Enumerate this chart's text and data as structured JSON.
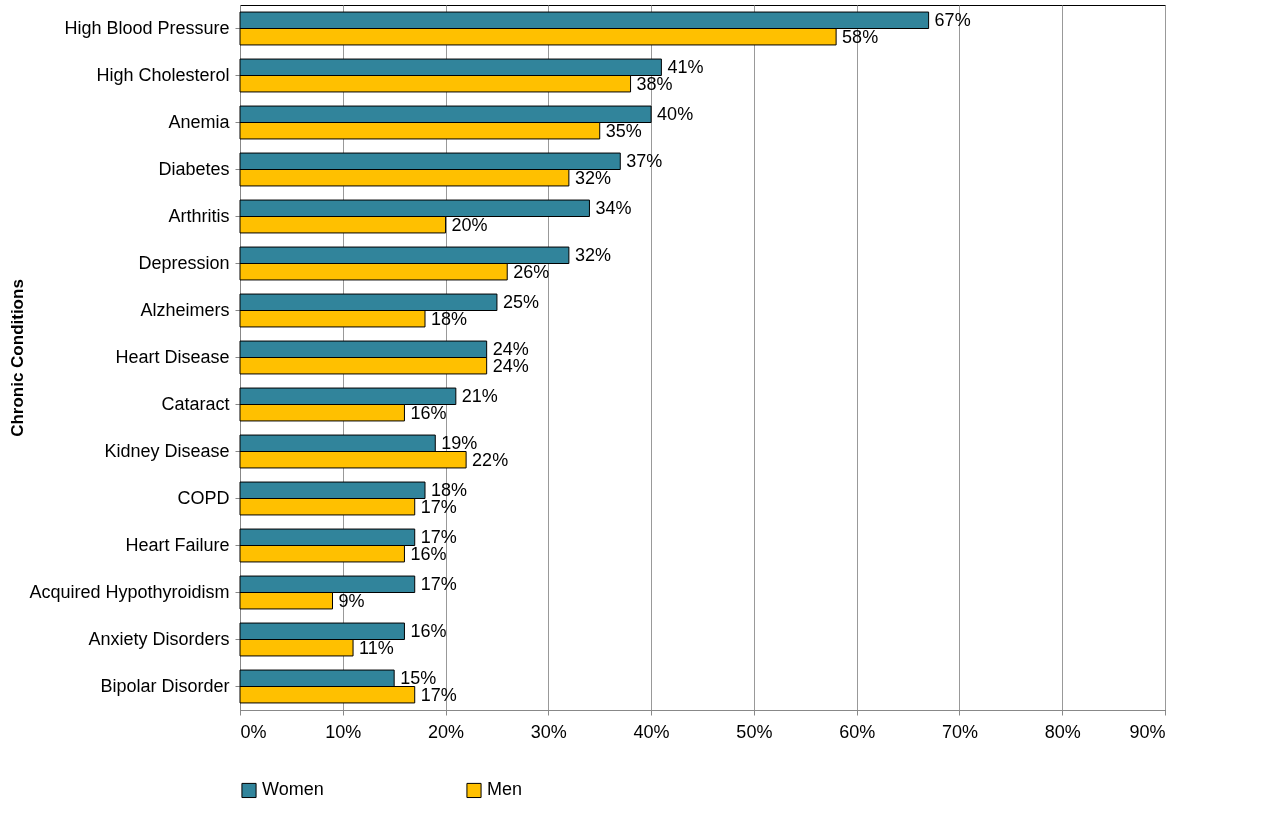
{
  "chart_data": {
    "type": "bar",
    "orientation": "horizontal",
    "ylabel": "Chronic Conditions",
    "categories": [
      "High Blood Pressure",
      "High Cholesterol",
      "Anemia",
      "Diabetes",
      "Arthritis",
      "Depression",
      "Alzheimers",
      "Heart Disease",
      "Cataract",
      "Kidney Disease",
      "COPD",
      "Heart Failure",
      "Acquired Hypothyroidism",
      "Anxiety Disorders",
      "Bipolar Disorder"
    ],
    "series": [
      {
        "name": "Women",
        "color": "#31849b",
        "values": [
          67,
          41,
          40,
          37,
          34,
          32,
          25,
          24,
          21,
          19,
          18,
          17,
          17,
          16,
          15
        ],
        "value_labels": [
          "67%",
          "41%",
          "40%",
          "37%",
          "34%",
          "32%",
          "25%",
          "24%",
          "21%",
          "19%",
          "18%",
          "17%",
          "17%",
          "16%",
          "15%"
        ]
      },
      {
        "name": "Men",
        "color": "#ffc000",
        "values": [
          58,
          38,
          35,
          32,
          20,
          26,
          18,
          24,
          16,
          22,
          17,
          16,
          9,
          11,
          17
        ],
        "value_labels": [
          "58%",
          "38%",
          "35%",
          "32%",
          "20%",
          "26%",
          "18%",
          "24%",
          "16%",
          "22%",
          "17%",
          "16%",
          "9%",
          "11%",
          "17%"
        ]
      }
    ],
    "xlim": [
      0,
      90
    ],
    "xticks": [
      {
        "value": 0,
        "label": "0%"
      },
      {
        "value": 10,
        "label": "10%"
      },
      {
        "value": 20,
        "label": "20%"
      },
      {
        "value": 30,
        "label": "30%"
      },
      {
        "value": 40,
        "label": "40%"
      },
      {
        "value": 50,
        "label": "50%"
      },
      {
        "value": 60,
        "label": "60%"
      },
      {
        "value": 70,
        "label": "70%"
      },
      {
        "value": 80,
        "label": "80%"
      },
      {
        "value": 90,
        "label": "90%"
      }
    ],
    "grid": "x",
    "legend": "bottom"
  }
}
